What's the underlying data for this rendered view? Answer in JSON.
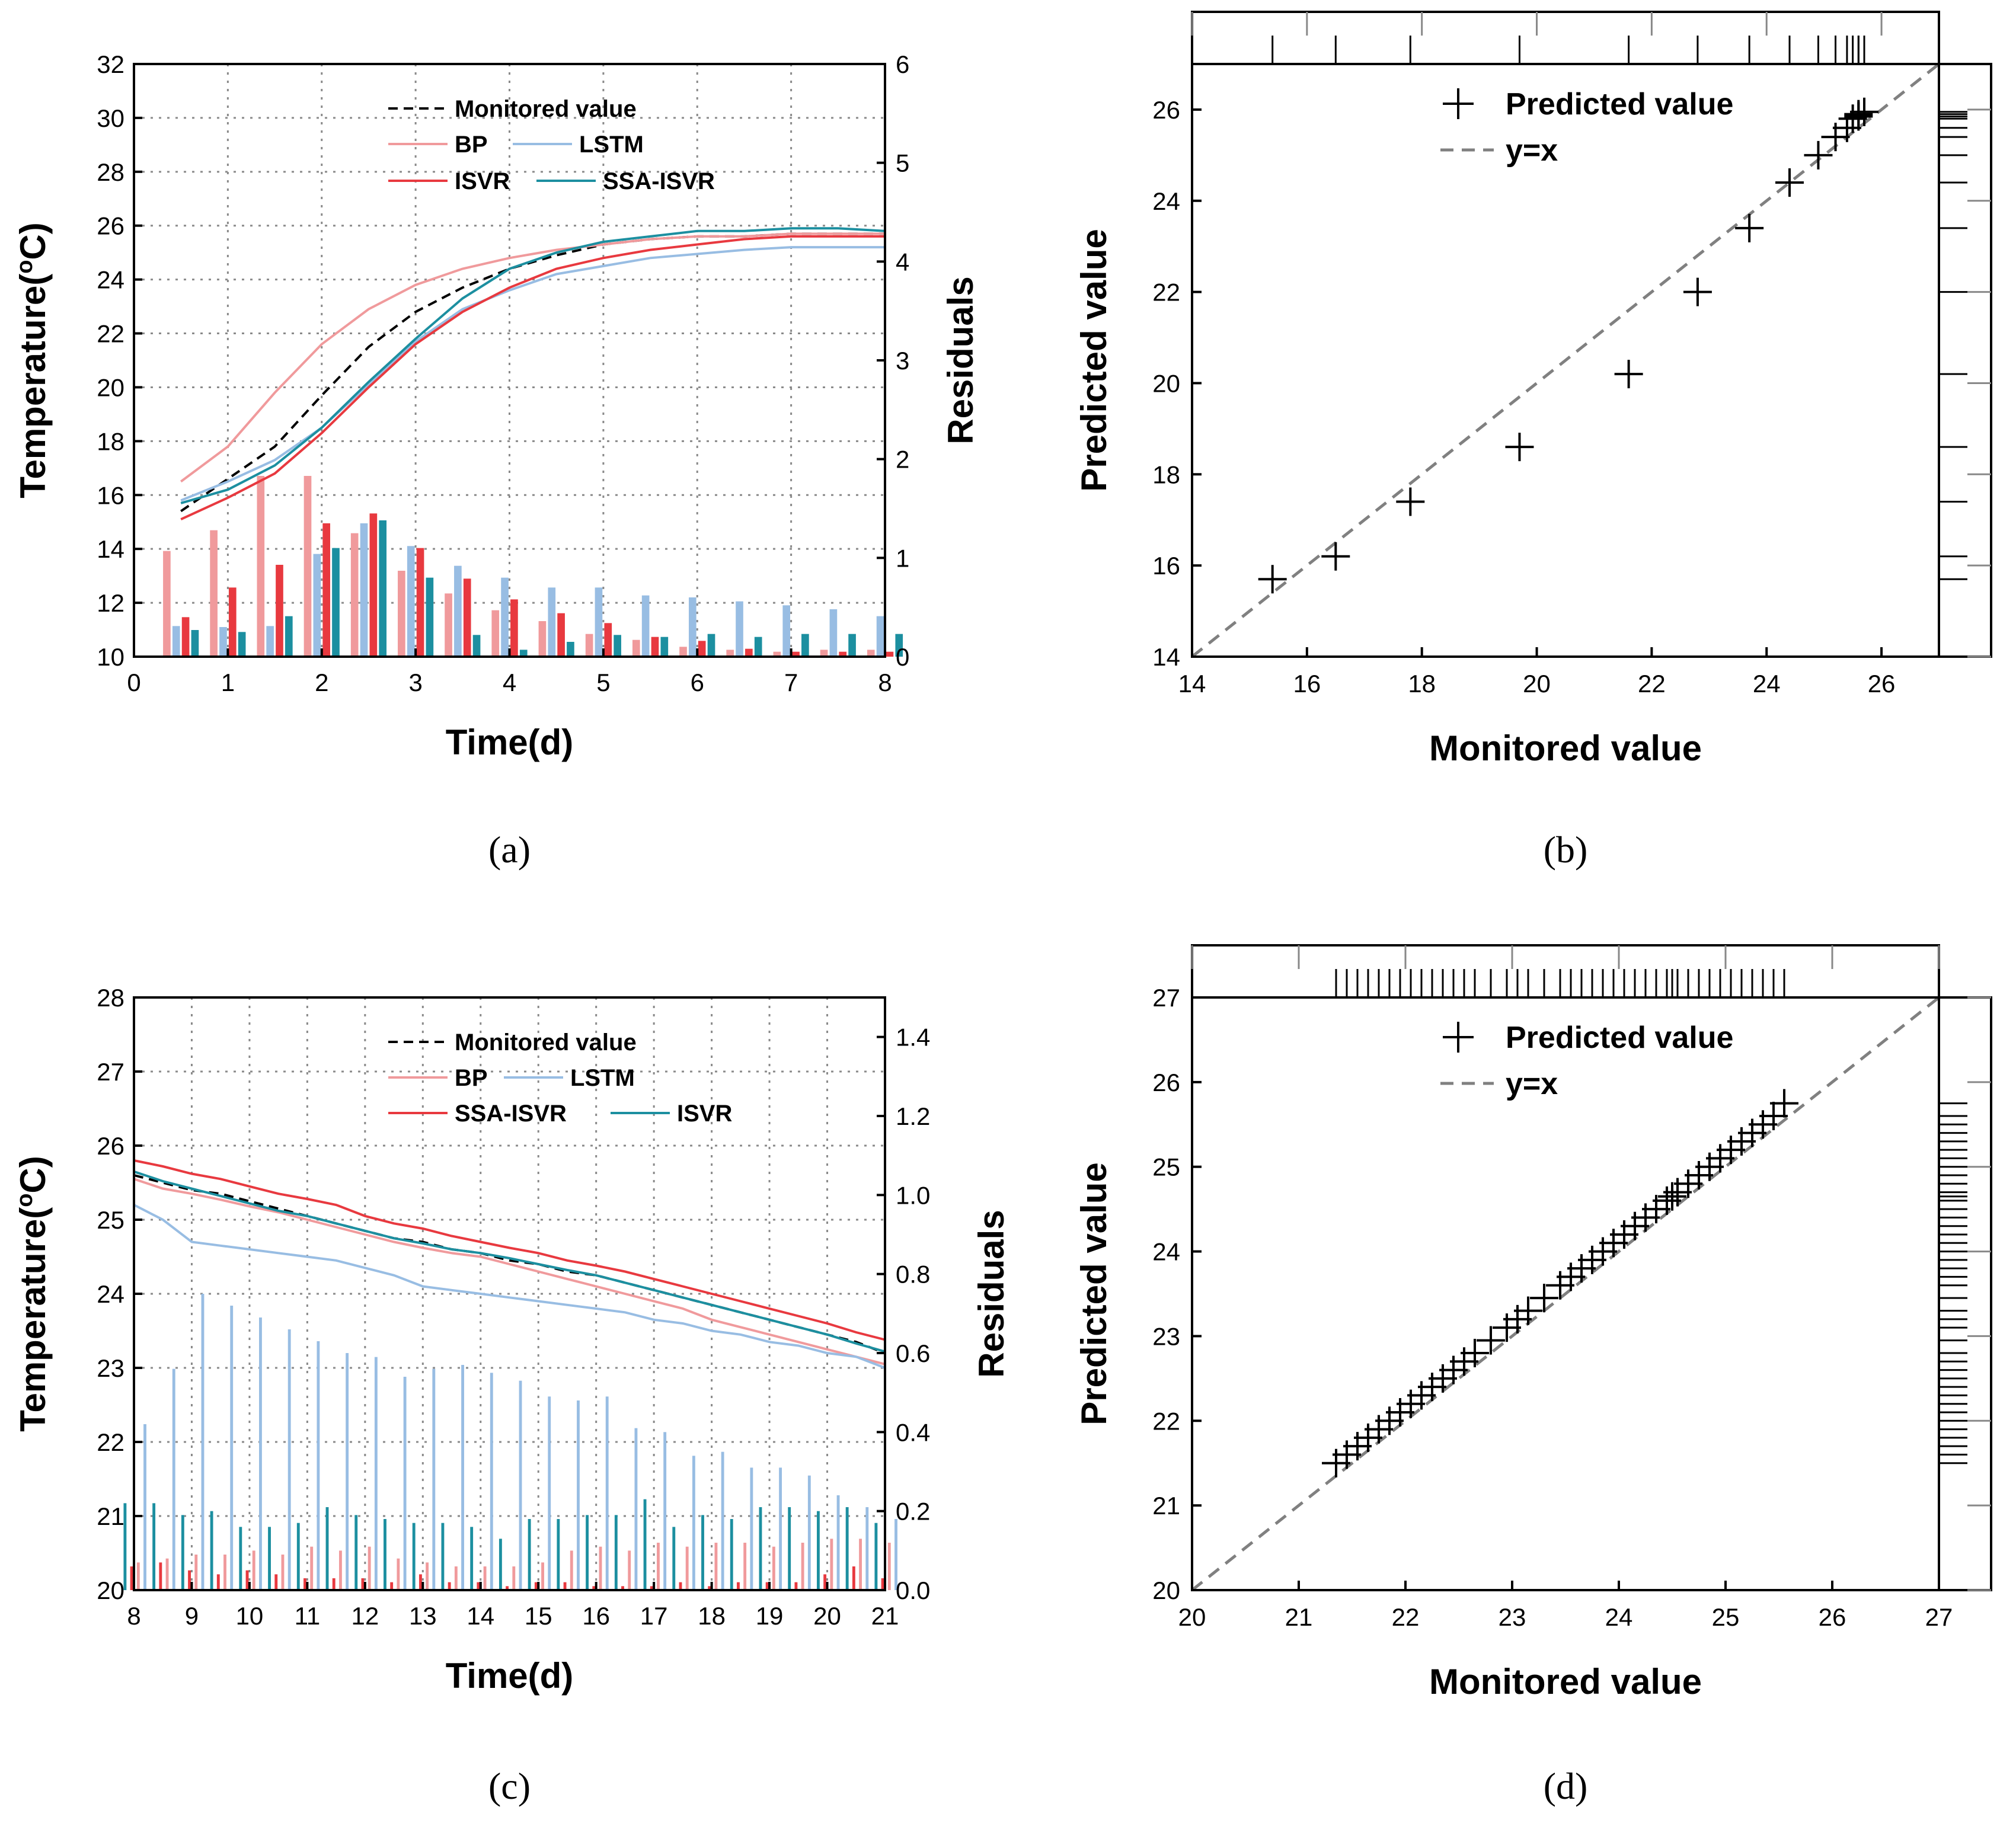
{
  "colors": {
    "monitored": "#000000",
    "BP": "#f09a9c",
    "LSTM": "#98bde3",
    "ISVR": "#e8393f",
    "SSA-ISVR": "#1c8fa0",
    "grid": "#8a8a8a",
    "yx": "#808080"
  },
  "chart_data": [
    {
      "panel": "(a)",
      "type": "line",
      "xlabel": "Time(d)",
      "ylabel": "Temperature(oC)",
      "ylabel_right": "Residuals",
      "xlim": [
        0,
        8
      ],
      "ylim": [
        10,
        32
      ],
      "ylim_right": [
        0,
        6
      ],
      "xticks": [
        0,
        1,
        2,
        3,
        4,
        5,
        6,
        7,
        8
      ],
      "yticks": [
        10,
        12,
        14,
        16,
        18,
        20,
        22,
        24,
        26,
        28,
        30,
        32
      ],
      "yticks_right": [
        0,
        1,
        2,
        3,
        4,
        5,
        6
      ],
      "grid": true,
      "legend": [
        {
          "label": "Monitored value",
          "series": "monitored",
          "dashed": true
        },
        {
          "label": "BP",
          "series": "BP"
        },
        {
          "label": "LSTM",
          "series": "LSTM"
        },
        {
          "label": "ISVR",
          "series": "ISVR"
        },
        {
          "label": "SSA-ISVR",
          "series": "SSA-ISVR"
        }
      ],
      "legend_position": "top",
      "x": [
        0.5,
        1,
        1.5,
        2,
        2.5,
        3,
        3.5,
        4,
        4.5,
        5,
        5.5,
        6,
        6.5,
        7,
        7.5,
        8
      ],
      "series": [
        {
          "name": "Monitored value",
          "key": "monitored",
          "values": [
            15.4,
            16.6,
            17.8,
            19.7,
            21.5,
            22.8,
            23.7,
            24.4,
            24.9,
            25.3,
            25.5,
            25.6,
            25.6,
            25.7,
            25.7,
            25.7
          ]
        },
        {
          "name": "BP",
          "key": "BP",
          "values": [
            16.5,
            17.8,
            19.8,
            21.6,
            22.9,
            23.8,
            24.4,
            24.8,
            25.1,
            25.3,
            25.5,
            25.6,
            25.6,
            25.7,
            25.7,
            25.7
          ]
        },
        {
          "name": "LSTM",
          "key": "LSTM",
          "values": [
            15.8,
            16.5,
            17.3,
            18.5,
            20.1,
            21.7,
            22.9,
            23.6,
            24.2,
            24.5,
            24.8,
            24.95,
            25.1,
            25.2,
            25.2,
            25.2
          ]
        },
        {
          "name": "ISVR",
          "key": "ISVR",
          "values": [
            15.1,
            15.9,
            16.8,
            18.3,
            20.0,
            21.6,
            22.8,
            23.7,
            24.4,
            24.8,
            25.1,
            25.3,
            25.5,
            25.6,
            25.6,
            25.6
          ]
        },
        {
          "name": "SSA-ISVR",
          "key": "SSA-ISVR",
          "values": [
            15.7,
            16.2,
            17.1,
            18.5,
            20.2,
            21.8,
            23.3,
            24.4,
            25.0,
            25.4,
            25.6,
            25.8,
            25.8,
            25.9,
            25.9,
            25.8
          ]
        }
      ],
      "residuals": {
        "x": [
          0.5,
          1,
          1.5,
          2,
          2.5,
          3,
          3.5,
          4,
          4.5,
          5,
          5.5,
          6,
          6.5,
          7,
          7.5,
          8
        ],
        "series": [
          {
            "key": "BP",
            "values": [
              1.07,
              1.28,
              1.83,
              1.83,
              1.25,
              0.87,
              0.64,
              0.47,
              0.36,
              0.23,
              0.17,
              0.1,
              0.07,
              0.05,
              0.07,
              0.07
            ]
          },
          {
            "key": "LSTM",
            "values": [
              0.31,
              0.3,
              0.31,
              1.04,
              1.35,
              1.12,
              0.92,
              0.8,
              0.7,
              0.7,
              0.62,
              0.6,
              0.56,
              0.52,
              0.48,
              0.41
            ]
          },
          {
            "key": "ISVR",
            "values": [
              0.4,
              0.7,
              0.93,
              1.35,
              1.45,
              1.1,
              0.79,
              0.58,
              0.44,
              0.34,
              0.2,
              0.16,
              0.08,
              0.05,
              0.05,
              0.05
            ]
          },
          {
            "key": "SSA-ISVR",
            "values": [
              0.27,
              0.25,
              0.41,
              1.1,
              1.38,
              0.8,
              0.22,
              0.07,
              0.15,
              0.22,
              0.2,
              0.23,
              0.2,
              0.23,
              0.23,
              0.23
            ]
          }
        ]
      }
    },
    {
      "panel": "(b)",
      "type": "scatter",
      "xlabel": "Monitored value",
      "ylabel": "Predicted value",
      "xlim": [
        14,
        27
      ],
      "ylim": [
        14,
        27
      ],
      "xticks": [
        14,
        16,
        18,
        20,
        22,
        24,
        26
      ],
      "yticks": [
        14,
        16,
        18,
        20,
        22,
        24,
        26
      ],
      "grid": false,
      "legend": [
        {
          "label": "Predicted value",
          "series": "points"
        },
        {
          "label": "y=x",
          "series": "yx",
          "dashed": true
        }
      ],
      "legend_position": "top-right",
      "x": [
        15.4,
        16.5,
        17.8,
        19.7,
        21.6,
        22.8,
        23.7,
        24.4,
        24.9,
        25.2,
        25.4,
        25.5,
        25.6,
        25.6,
        25.7
      ],
      "y": [
        15.7,
        16.2,
        17.4,
        18.6,
        20.2,
        22.0,
        23.4,
        24.4,
        25.0,
        25.4,
        25.6,
        25.8,
        25.85,
        25.9,
        25.95
      ]
    },
    {
      "panel": "(c)",
      "type": "line",
      "xlabel": "Time(d)",
      "ylabel": "Temperature(oC)",
      "ylabel_right": "Residuals",
      "xlim": [
        8,
        21
      ],
      "ylim": [
        20,
        28
      ],
      "ylim_right": [
        0,
        1.5
      ],
      "xticks": [
        8,
        9,
        10,
        11,
        12,
        13,
        14,
        15,
        16,
        17,
        18,
        19,
        20,
        21
      ],
      "yticks": [
        20,
        21,
        22,
        23,
        24,
        25,
        26,
        27,
        28
      ],
      "yticks_right": [
        "0.0",
        "0.2",
        "0.4",
        "0.6",
        "0.8",
        "1.0",
        "1.2",
        "1.4"
      ],
      "grid": true,
      "legend": [
        {
          "label": "Monitored value",
          "series": "monitored",
          "dashed": true
        },
        {
          "label": "BP",
          "series": "BP"
        },
        {
          "label": "LSTM",
          "series": "LSTM"
        },
        {
          "label": "SSA-ISVR",
          "series": "ISVR"
        },
        {
          "label": "ISVR",
          "series": "SSA-ISVR"
        }
      ],
      "legend_position": "top",
      "x": [
        8,
        8.5,
        9,
        9.5,
        10,
        10.5,
        11,
        11.5,
        12,
        12.5,
        13,
        13.5,
        14,
        14.5,
        15,
        15.5,
        16,
        16.5,
        17,
        17.5,
        18,
        18.5,
        19,
        19.5,
        20,
        20.5,
        21
      ],
      "series": [
        {
          "name": "Monitored value",
          "key": "monitored",
          "values": [
            25.6,
            25.5,
            25.4,
            25.35,
            25.25,
            25.15,
            25.05,
            24.95,
            24.85,
            24.75,
            24.7,
            24.6,
            24.55,
            24.45,
            24.4,
            24.3,
            24.25,
            24.15,
            24.05,
            23.95,
            23.85,
            23.75,
            23.65,
            23.55,
            23.45,
            23.35,
            23.2
          ]
        },
        {
          "name": "BP",
          "key": "BP",
          "values": [
            25.55,
            25.42,
            25.35,
            25.27,
            25.18,
            25.1,
            25.0,
            24.9,
            24.8,
            24.7,
            24.62,
            24.55,
            24.5,
            24.4,
            24.3,
            24.2,
            24.1,
            24.0,
            23.9,
            23.8,
            23.65,
            23.55,
            23.45,
            23.35,
            23.25,
            23.15,
            23.05
          ]
        },
        {
          "name": "LSTM",
          "key": "LSTM",
          "values": [
            25.2,
            25.0,
            24.7,
            24.65,
            24.6,
            24.55,
            24.5,
            24.45,
            24.35,
            24.25,
            24.1,
            24.05,
            24.0,
            23.95,
            23.9,
            23.85,
            23.8,
            23.75,
            23.65,
            23.6,
            23.5,
            23.45,
            23.35,
            23.3,
            23.2,
            23.15,
            23.0
          ]
        },
        {
          "name": "SSA-ISVR",
          "key": "ISVR",
          "values": [
            25.8,
            25.72,
            25.62,
            25.55,
            25.45,
            25.35,
            25.28,
            25.2,
            25.05,
            24.95,
            24.88,
            24.78,
            24.7,
            24.62,
            24.55,
            24.45,
            24.38,
            24.3,
            24.2,
            24.1,
            24.0,
            23.9,
            23.8,
            23.7,
            23.6,
            23.48,
            23.38
          ]
        },
        {
          "name": "ISVR",
          "key": "SSA-ISVR",
          "values": [
            25.65,
            25.52,
            25.42,
            25.32,
            25.22,
            25.12,
            25.05,
            24.95,
            24.85,
            24.75,
            24.68,
            24.6,
            24.55,
            24.48,
            24.4,
            24.32,
            24.25,
            24.15,
            24.05,
            23.95,
            23.85,
            23.75,
            23.65,
            23.55,
            23.45,
            23.33,
            23.22
          ]
        }
      ],
      "residuals": {
        "x": [
          8,
          8.5,
          9,
          9.5,
          10,
          10.5,
          11,
          11.5,
          12,
          12.5,
          13,
          13.5,
          14,
          14.5,
          15,
          15.5,
          16,
          16.5,
          17,
          17.5,
          18,
          18.5,
          19,
          19.5,
          20,
          20.5,
          21
        ],
        "series": [
          {
            "key": "BP",
            "values": [
              0.07,
              0.08,
              0.09,
              0.09,
              0.1,
              0.09,
              0.11,
              0.1,
              0.11,
              0.08,
              0.07,
              0.06,
              0.06,
              0.06,
              0.07,
              0.1,
              0.11,
              0.1,
              0.12,
              0.11,
              0.12,
              0.12,
              0.11,
              0.12,
              0.13,
              0.13,
              0.12
            ]
          },
          {
            "key": "LSTM",
            "values": [
              0.42,
              0.56,
              0.75,
              0.72,
              0.69,
              0.66,
              0.63,
              0.6,
              0.59,
              0.54,
              0.56,
              0.57,
              0.55,
              0.53,
              0.49,
              0.48,
              0.49,
              0.41,
              0.4,
              0.34,
              0.35,
              0.31,
              0.31,
              0.29,
              0.24,
              0.21,
              0.18
            ]
          },
          {
            "key": "ISVR",
            "values": [
              0.06,
              0.07,
              0.05,
              0.04,
              0.05,
              0.04,
              0.03,
              0.03,
              0.03,
              0.02,
              0.04,
              0.02,
              0.02,
              0.01,
              0.02,
              0.02,
              0.01,
              0.01,
              0.01,
              0.02,
              0.01,
              0.02,
              0.02,
              0.02,
              0.04,
              0.06,
              0.03
            ]
          },
          {
            "key": "SSA-ISVR",
            "values": [
              0.22,
              0.22,
              0.19,
              0.2,
              0.16,
              0.16,
              0.17,
              0.21,
              0.19,
              0.18,
              0.17,
              0.17,
              0.16,
              0.13,
              0.18,
              0.18,
              0.19,
              0.19,
              0.23,
              0.16,
              0.19,
              0.18,
              0.21,
              0.21,
              0.2,
              0.21,
              0.17
            ]
          }
        ]
      }
    },
    {
      "panel": "(d)",
      "type": "scatter",
      "xlabel": "Monitored value",
      "ylabel": "Predicted value",
      "xlim": [
        20,
        27
      ],
      "ylim": [
        20,
        27
      ],
      "xticks": [
        20,
        21,
        22,
        23,
        24,
        25,
        26,
        27
      ],
      "yticks": [
        20,
        21,
        22,
        23,
        24,
        25,
        26,
        27
      ],
      "grid": false,
      "legend": [
        {
          "label": "Predicted value",
          "series": "points"
        },
        {
          "label": "y=x",
          "series": "yx",
          "dashed": true
        }
      ],
      "legend_position": "top-right",
      "x": [
        21.35,
        21.45,
        21.55,
        21.65,
        21.75,
        21.85,
        21.95,
        22.05,
        22.15,
        22.25,
        22.35,
        22.45,
        22.55,
        22.65,
        22.8,
        22.95,
        23.05,
        23.15,
        23.3,
        23.45,
        23.55,
        23.65,
        23.75,
        23.85,
        23.95,
        24.05,
        24.15,
        24.25,
        24.35,
        24.45,
        24.5,
        24.55,
        24.65,
        24.75,
        24.85,
        24.95,
        25.05,
        25.15,
        25.25,
        25.35,
        25.45,
        25.55
      ],
      "y": [
        21.5,
        21.6,
        21.7,
        21.8,
        21.9,
        22.0,
        22.1,
        22.2,
        22.3,
        22.4,
        22.5,
        22.6,
        22.7,
        22.8,
        22.95,
        23.1,
        23.2,
        23.3,
        23.45,
        23.6,
        23.7,
        23.8,
        23.9,
        24.0,
        24.1,
        24.2,
        24.3,
        24.4,
        24.5,
        24.6,
        24.65,
        24.7,
        24.8,
        24.9,
        25.0,
        25.1,
        25.2,
        25.3,
        25.4,
        25.5,
        25.6,
        25.75
      ]
    }
  ]
}
